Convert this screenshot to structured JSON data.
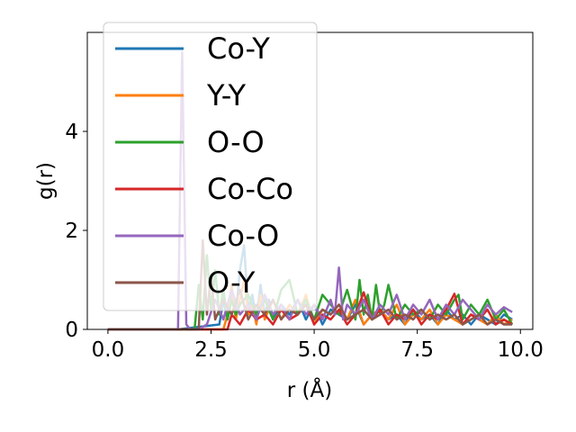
{
  "chart_data": {
    "type": "line",
    "title": "",
    "xlabel": "r (Å)",
    "ylabel": "g(r)",
    "xlim": [
      -0.5,
      10.3
    ],
    "ylim": [
      0,
      6.0
    ],
    "xticks": [
      "0.0",
      "2.5",
      "5.0",
      "7.5",
      "10.0"
    ],
    "xtick_values": [
      0,
      2.5,
      5,
      7.5,
      10
    ],
    "yticks": [
      "0",
      "2",
      "4"
    ],
    "ytick_values": [
      0,
      2,
      4
    ],
    "grid": false,
    "legend": "top-left",
    "series": [
      {
        "name": "Co-Y",
        "color": "#1f77b4",
        "x": [
          0,
          1.7,
          2.7,
          2.8,
          2.9,
          3.0,
          3.1,
          3.2,
          3.3,
          3.4,
          3.5,
          3.6,
          3.7,
          3.8,
          3.9,
          4.0,
          4.2,
          4.4,
          4.6,
          4.8,
          5.0,
          5.2,
          5.4,
          5.6,
          5.8,
          6.0,
          6.2,
          6.4,
          6.6,
          6.8,
          7.0,
          7.2,
          7.4,
          7.6,
          7.8,
          8.0,
          8.2,
          8.4,
          8.6,
          8.8,
          9.0,
          9.2,
          9.4,
          9.6,
          9.8
        ],
        "values": [
          0,
          0,
          0.1,
          0.6,
          0.2,
          0.8,
          0.3,
          1.2,
          1.7,
          0.4,
          0.7,
          0.2,
          0.9,
          0.3,
          0.6,
          0.2,
          0.5,
          0.3,
          0.6,
          0.2,
          0.5,
          0.1,
          0.4,
          0.3,
          0.2,
          0.5,
          0.1,
          0.3,
          0.4,
          0.2,
          0.3,
          0.1,
          0.4,
          0.2,
          0.3,
          0.1,
          0.4,
          0.2,
          0.3,
          0.1,
          0.3,
          0.2,
          0.1,
          0.3,
          0.2
        ]
      },
      {
        "name": "Y-Y",
        "color": "#ff7f0e",
        "x": [
          0,
          2.8,
          2.9,
          3.0,
          3.1,
          3.2,
          3.3,
          3.4,
          3.5,
          3.6,
          3.7,
          3.8,
          3.9,
          4.0,
          4.2,
          4.4,
          4.6,
          4.8,
          5.0,
          5.2,
          5.4,
          5.6,
          5.8,
          6.0,
          6.2,
          6.4,
          6.6,
          6.8,
          7.0,
          7.2,
          7.4,
          7.6,
          7.8,
          8.0,
          8.2,
          8.4,
          8.6,
          8.8,
          9.0,
          9.2,
          9.4,
          9.6,
          9.8
        ],
        "values": [
          0,
          0,
          0.3,
          0.9,
          0.2,
          0.6,
          1.0,
          0.3,
          0.5,
          0.1,
          0.7,
          0.2,
          0.4,
          0.6,
          0.2,
          0.5,
          0.3,
          0.7,
          0.1,
          0.4,
          0.3,
          0.5,
          0.2,
          0.6,
          0.1,
          0.3,
          0.4,
          0.2,
          0.5,
          0.1,
          0.3,
          0.2,
          0.4,
          0.1,
          0.3,
          0.2,
          0.1,
          0.3,
          0.2,
          0.1,
          0.3,
          0.1,
          0.2
        ]
      },
      {
        "name": "O-O",
        "color": "#2ca02c",
        "x": [
          0,
          2.1,
          2.2,
          2.3,
          2.4,
          2.5,
          2.6,
          2.7,
          2.8,
          2.9,
          3.0,
          3.1,
          3.2,
          3.4,
          3.6,
          3.8,
          4.0,
          4.2,
          4.4,
          4.6,
          4.8,
          5.0,
          5.2,
          5.4,
          5.6,
          5.8,
          6.0,
          6.1,
          6.2,
          6.3,
          6.4,
          6.5,
          6.6,
          6.7,
          6.8,
          7.0,
          7.2,
          7.4,
          7.6,
          7.8,
          8.0,
          8.2,
          8.4,
          8.5,
          8.6,
          8.8,
          9.0,
          9.2,
          9.4,
          9.6,
          9.8
        ],
        "values": [
          0,
          0,
          0.9,
          0.2,
          1.5,
          0.4,
          1.2,
          0.3,
          0.8,
          0.2,
          0.6,
          0.3,
          0.5,
          0.7,
          0.3,
          0.6,
          0.2,
          0.8,
          1.0,
          0.3,
          0.6,
          0.2,
          0.7,
          0.5,
          0.3,
          0.8,
          0.2,
          1.0,
          0.3,
          0.7,
          0.2,
          0.9,
          0.3,
          0.5,
          0.9,
          0.2,
          0.5,
          0.3,
          0.4,
          0.2,
          0.5,
          0.3,
          0.6,
          0.7,
          0.2,
          0.5,
          0.3,
          0.6,
          0.2,
          0.4,
          0.1
        ]
      },
      {
        "name": "Co-Co",
        "color": "#d62728",
        "x": [
          0,
          2.9,
          3.0,
          3.2,
          3.4,
          3.6,
          3.8,
          4.0,
          4.2,
          4.4,
          4.6,
          4.8,
          5.0,
          5.2,
          5.4,
          5.6,
          5.8,
          6.0,
          6.2,
          6.4,
          6.6,
          6.8,
          7.0,
          7.2,
          7.4,
          7.6,
          7.8,
          8.0,
          8.2,
          8.4,
          8.6,
          8.8,
          9.0,
          9.2,
          9.4,
          9.6,
          9.8
        ],
        "values": [
          0,
          0,
          0.3,
          0.1,
          0.4,
          0.2,
          0.3,
          0.1,
          0.4,
          0.2,
          0.3,
          0.5,
          0.1,
          0.3,
          0.2,
          0.4,
          0.1,
          0.3,
          0.75,
          0.2,
          0.4,
          0.1,
          0.3,
          0.2,
          0.4,
          0.1,
          0.3,
          0.2,
          0.4,
          0.72,
          0.1,
          0.3,
          0.2,
          0.4,
          0.1,
          0.2,
          0.1
        ]
      },
      {
        "name": "Co-O",
        "color": "#9467bd",
        "x": [
          0,
          1.7,
          1.8,
          1.9,
          2.0,
          2.2,
          2.4,
          2.6,
          2.8,
          3.0,
          3.2,
          3.4,
          3.6,
          3.8,
          4.0,
          4.2,
          4.4,
          4.6,
          4.8,
          5.0,
          5.2,
          5.4,
          5.5,
          5.6,
          5.7,
          5.8,
          6.0,
          6.2,
          6.4,
          6.6,
          6.8,
          7.0,
          7.2,
          7.4,
          7.6,
          7.8,
          8.0,
          8.2,
          8.4,
          8.6,
          8.8,
          9.0,
          9.2,
          9.4,
          9.6,
          9.8
        ],
        "values": [
          0,
          0,
          5.6,
          0.1,
          0,
          0,
          0.1,
          0.6,
          0.2,
          0.8,
          0.3,
          0.5,
          0.2,
          0.7,
          0.3,
          0.5,
          0.2,
          0.6,
          0.3,
          0.5,
          0.2,
          0.6,
          0.3,
          1.25,
          0.2,
          0.5,
          0.3,
          0.6,
          0.2,
          0.5,
          0.3,
          0.7,
          0.2,
          0.5,
          0.3,
          0.6,
          0.2,
          0.5,
          0.3,
          0.6,
          0.4,
          0.2,
          0.5,
          0.3,
          0.45,
          0.35
        ]
      },
      {
        "name": "O-Y",
        "color": "#8c564b",
        "x": [
          0,
          2.2,
          2.3,
          2.4,
          2.5,
          2.6,
          2.8,
          3.0,
          3.2,
          3.4,
          3.6,
          3.8,
          4.0,
          4.2,
          4.4,
          4.6,
          4.8,
          5.0,
          5.2,
          5.4,
          5.6,
          5.8,
          6.0,
          6.2,
          6.4,
          6.6,
          6.8,
          7.0,
          7.2,
          7.4,
          7.6,
          7.8,
          8.0,
          8.2,
          8.4,
          8.6,
          8.8,
          9.0,
          9.2,
          9.4,
          9.6,
          9.8
        ],
        "values": [
          0,
          0,
          1.8,
          0.3,
          1.1,
          0.2,
          0.6,
          0.3,
          0.8,
          0.2,
          0.5,
          0.3,
          0.6,
          0.2,
          0.4,
          0.3,
          0.5,
          0.2,
          0.4,
          0.3,
          0.5,
          0.2,
          0.3,
          0.4,
          0.2,
          0.3,
          0.4,
          0.2,
          0.3,
          0.2,
          0.4,
          0.2,
          0.3,
          0.2,
          0.3,
          0.1,
          0.2,
          0.3,
          0.1,
          0.2,
          0.1,
          0.1
        ]
      }
    ]
  }
}
